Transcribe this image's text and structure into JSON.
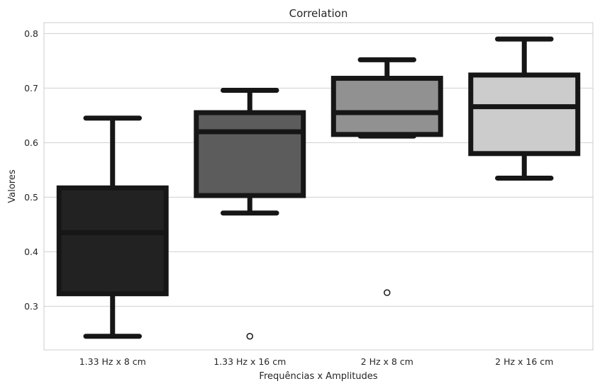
{
  "chart_data": {
    "type": "box",
    "title": "Correlation",
    "xlabel": "Frequências x Amplitudes",
    "ylabel": "Valores",
    "ylim": [
      0.22,
      0.82
    ],
    "yticks": [
      0.3,
      0.4,
      0.5,
      0.6,
      0.7,
      0.8
    ],
    "ytick_labels": [
      "0.3",
      "0.4",
      "0.5",
      "0.6",
      "0.7",
      "0.8"
    ],
    "grid": "horizontal",
    "categories": [
      "1.33 Hz x 8 cm",
      "1.33 Hz x 16 cm",
      "2 Hz x 8 cm",
      "2 Hz x 16 cm"
    ],
    "boxes": [
      {
        "whisker_low": 0.245,
        "q1": 0.323,
        "median": 0.435,
        "q3": 0.517,
        "whisker_high": 0.645,
        "outliers": [],
        "color": "#222222"
      },
      {
        "whisker_low": 0.471,
        "q1": 0.503,
        "median": 0.62,
        "q3": 0.655,
        "whisker_high": 0.696,
        "outliers": [
          0.245
        ],
        "color": "#5c5c5c"
      },
      {
        "whisker_low": 0.612,
        "q1": 0.615,
        "median": 0.655,
        "q3": 0.718,
        "whisker_high": 0.752,
        "outliers": [
          0.325
        ],
        "color": "#919191"
      },
      {
        "whisker_low": 0.535,
        "q1": 0.58,
        "median": 0.666,
        "q3": 0.724,
        "whisker_high": 0.79,
        "outliers": [],
        "color": "#cccccc"
      }
    ],
    "colors": {
      "edge": "#161616",
      "grid": "#d0d0d0",
      "frame": "#cccccc"
    }
  }
}
